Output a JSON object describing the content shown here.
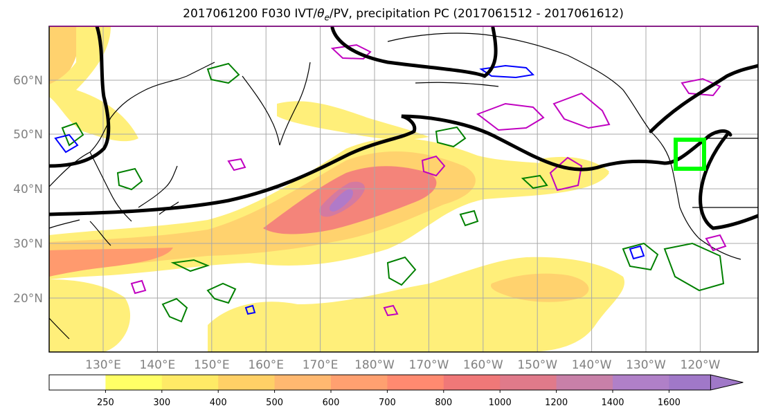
{
  "title": {
    "prefix": "2017061200 F030 IVT/",
    "theta_symbol": "θ",
    "theta_sub": "e",
    "suffix": "/PV, precipitation PC (2017061512 - 2017061612)"
  },
  "map": {
    "lat_ticks": [
      {
        "value": 20,
        "label": "20°N"
      },
      {
        "value": 30,
        "label": "30°N"
      },
      {
        "value": 40,
        "label": "40°N"
      },
      {
        "value": 50,
        "label": "50°N"
      },
      {
        "value": 60,
        "label": "60°N"
      }
    ],
    "lon_ticks": [
      {
        "value": 130,
        "label": "130°E"
      },
      {
        "value": 140,
        "label": "140°E"
      },
      {
        "value": 150,
        "label": "150°E"
      },
      {
        "value": 160,
        "label": "160°E"
      },
      {
        "value": 170,
        "label": "170°E"
      },
      {
        "value": 180,
        "label": "180°W"
      },
      {
        "value": 190,
        "label": "170°W"
      },
      {
        "value": 200,
        "label": "160°W"
      },
      {
        "value": 210,
        "label": "150°W"
      },
      {
        "value": 220,
        "label": "140°W"
      },
      {
        "value": 230,
        "label": "130°W"
      },
      {
        "value": 240,
        "label": "120°W"
      }
    ],
    "lon_range": [
      120,
      250
    ],
    "lat_range": [
      10,
      70
    ],
    "grid": true,
    "target_box_color": "#00ff00",
    "pv_contour_color": "#000000",
    "theta_e_colors": [
      "#008000",
      "#0000ff",
      "#c000c0"
    ]
  },
  "colorbar": {
    "levels": [
      250,
      300,
      400,
      500,
      600,
      700,
      800,
      1000,
      1200,
      1400,
      1600
    ],
    "colors": [
      "#ffffff",
      "#ffff66",
      "#ffea66",
      "#ffd066",
      "#ffb870",
      "#ffa070",
      "#ff8a70",
      "#f07878",
      "#e07a8a",
      "#c880a8",
      "#b080c8",
      "#a078c8"
    ]
  }
}
